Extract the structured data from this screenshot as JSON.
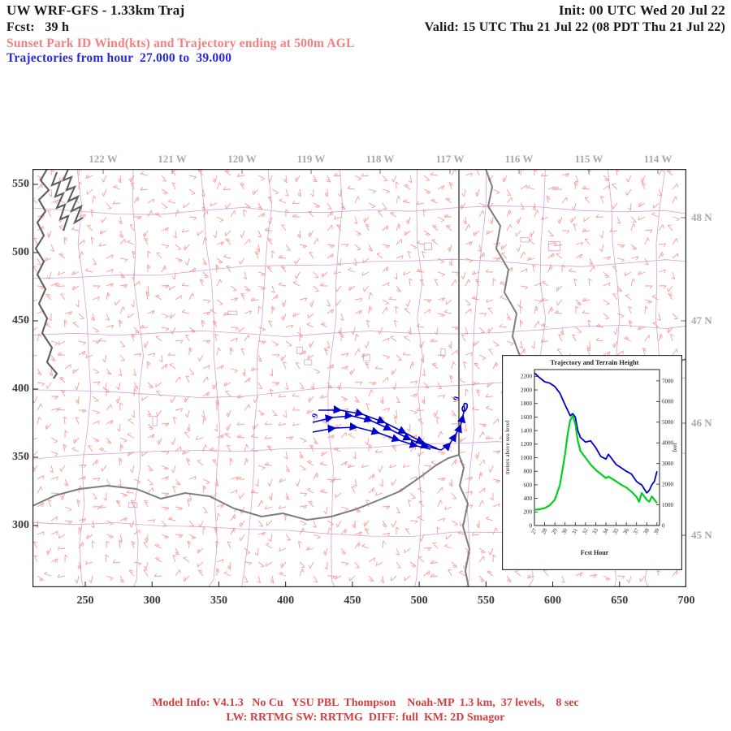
{
  "header": {
    "title": "UW WRF-GFS - 1.33km Traj",
    "init": "Init: 00 UTC Wed 20 Jul 22",
    "fcst": "Fcst:   39 h",
    "valid": "Valid: 15 UTC Thu 21 Jul 22 (08 PDT Thu 21 Jul 22)",
    "subtitle": "Sunset Park ID Wind(kts) and Trajectory ending at 500m AGL",
    "traj_range": "Trajectories from hour  27.000 to  39.000"
  },
  "colors": {
    "subtitle_salmon": "#f28080",
    "header_blue": "#2b2bd0",
    "wind_barb": "#f59b9b",
    "county_border": "#c77fc7",
    "state_border": "#7d7d7d",
    "coastline": "#5f5f5f",
    "trajectory_blue": "#0000cd",
    "terrain_green": "#00d020",
    "footer_red": "#d04040"
  },
  "map": {
    "x_ticks": [
      "250",
      "300",
      "350",
      "400",
      "450",
      "500",
      "550",
      "600",
      "650",
      "700"
    ],
    "y_ticks": [
      "550",
      "500",
      "450",
      "400",
      "350",
      "300"
    ],
    "lon_ticks": [
      "122 W",
      "121 W",
      "120 W",
      "119 W",
      "118 W",
      "117 W",
      "116 W",
      "115 W",
      "114 W"
    ],
    "lat_ticks": [
      "48 N",
      "47 N",
      "46 N",
      "45 N"
    ],
    "trajectory_hour_labels": [
      "9",
      "9"
    ]
  },
  "chart_data": {
    "type": "line",
    "title": "Trajectory and Terrain Height",
    "xlabel": "Fcst Hour",
    "ylabel_left": "meters above sea level",
    "ylabel_right": "feet",
    "xlim": [
      27,
      39.25
    ],
    "ylim_left_m": [
      0,
      2300
    ],
    "x_tick_labels": [
      "27",
      "28",
      "29",
      "30",
      "31",
      "32",
      "33",
      "34",
      "35",
      "36",
      "37",
      "38",
      "39"
    ],
    "y_ticks_left_m": [
      0,
      200,
      400,
      600,
      800,
      1000,
      1200,
      1400,
      1600,
      1800,
      2000,
      2200
    ],
    "y_ticks_right_ft": [
      0,
      1000,
      2000,
      3000,
      4000,
      5000,
      6000,
      7000
    ],
    "x": [
      27,
      27.5,
      28,
      28.5,
      29,
      29.5,
      30,
      30.25,
      30.5,
      30.75,
      31,
      31.25,
      31.5,
      32,
      32.5,
      33,
      33.5,
      34,
      34.25,
      34.5,
      35,
      35.5,
      36,
      36.5,
      37,
      37.25,
      37.5,
      38,
      38.25,
      38.5,
      38.75,
      39
    ],
    "series": [
      {
        "name": "trajectory-height-m-asl",
        "color": "#0000cd",
        "values": [
          2250,
          2180,
          2120,
          2100,
          2050,
          1950,
          1780,
          1700,
          1620,
          1650,
          1600,
          1400,
          1300,
          1230,
          1250,
          1150,
          1020,
          980,
          1050,
          1000,
          900,
          850,
          800,
          760,
          650,
          620,
          600,
          480,
          520,
          600,
          650,
          800
        ]
      },
      {
        "name": "terrain-height-m-asl",
        "color": "#00d020",
        "values": [
          230,
          240,
          255,
          300,
          380,
          600,
          1050,
          1350,
          1550,
          1620,
          1500,
          1250,
          1100,
          1000,
          900,
          820,
          760,
          700,
          720,
          700,
          650,
          600,
          560,
          500,
          420,
          350,
          480,
          380,
          350,
          430,
          380,
          330
        ]
      }
    ],
    "legend": "off",
    "grid": "off"
  },
  "footer": {
    "line1": "Model Info: V4.1.3   No Cu   YSU PBL  Thompson    Noah-MP  1.3 km,  37 levels,    8 sec",
    "line2": "LW: RRTMG SW: RRTMG  DIFF: full  KM: 2D Smagor"
  }
}
